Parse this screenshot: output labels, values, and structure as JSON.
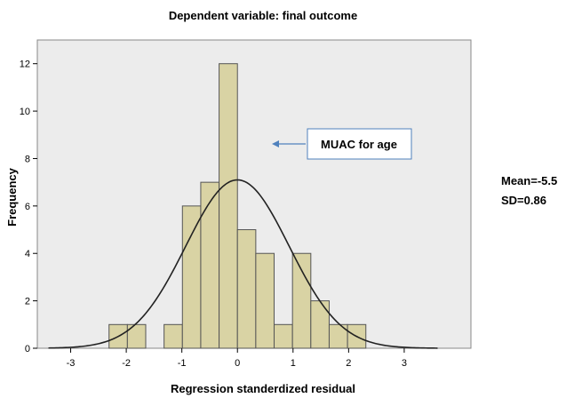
{
  "chart_data": {
    "type": "bar",
    "title": "Dependent variable: final outcome",
    "xlabel": "Regression standerdized residual",
    "ylabel": "Frequency",
    "xlim": [
      -3.6,
      4.2
    ],
    "ylim": [
      0,
      13
    ],
    "x_ticks": [
      -3,
      -2,
      -1,
      0,
      1,
      2,
      3
    ],
    "y_ticks": [
      0,
      2,
      4,
      6,
      8,
      10,
      12
    ],
    "bin_width": 0.33,
    "bins": [
      {
        "x0": -2.31,
        "x1": -1.98,
        "count": 1
      },
      {
        "x0": -1.98,
        "x1": -1.65,
        "count": 1
      },
      {
        "x0": -1.32,
        "x1": -0.99,
        "count": 1
      },
      {
        "x0": -0.99,
        "x1": -0.66,
        "count": 6
      },
      {
        "x0": -0.66,
        "x1": -0.33,
        "count": 7
      },
      {
        "x0": -0.33,
        "x1": 0.0,
        "count": 12
      },
      {
        "x0": 0.0,
        "x1": 0.33,
        "count": 5
      },
      {
        "x0": 0.33,
        "x1": 0.66,
        "count": 4
      },
      {
        "x0": 0.66,
        "x1": 0.99,
        "count": 1
      },
      {
        "x0": 0.99,
        "x1": 1.32,
        "count": 4
      },
      {
        "x0": 1.32,
        "x1": 1.65,
        "count": 2
      },
      {
        "x0": 1.65,
        "x1": 1.98,
        "count": 1
      },
      {
        "x0": 1.98,
        "x1": 2.31,
        "count": 1
      }
    ],
    "normal_curve": {
      "mean": 0,
      "sd": 0.93,
      "peak": 7.1
    },
    "grid": false,
    "annotation": {
      "text": "MUAC for age",
      "target_bin_index": 5,
      "target_count": 9
    },
    "stats": {
      "mean_label": "Mean=-5.5",
      "sd_label": "SD=0.86"
    }
  },
  "colors": {
    "bar_fill": "#d9d3a4",
    "bar_stroke": "#555555",
    "plot_bg": "#ececec",
    "curve": "#222222",
    "annotation_border": "#4f81bd",
    "arrow": "#4f81bd"
  }
}
